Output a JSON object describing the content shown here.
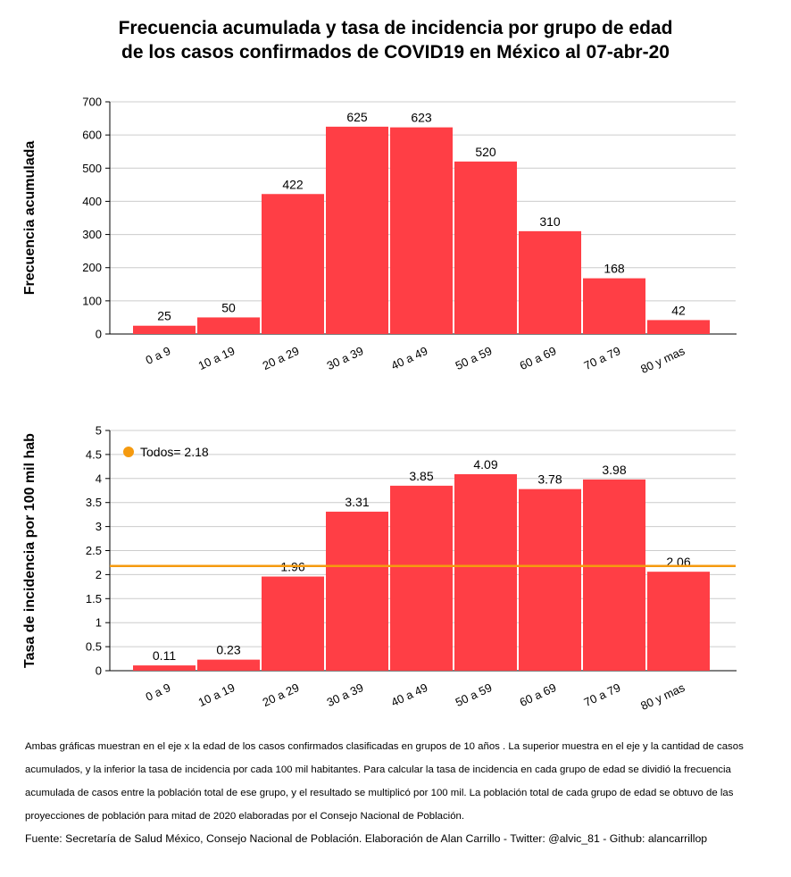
{
  "title_lines": [
    "Frecuencia acumulada y tasa de incidencia por grupo de edad",
    "de los casos confirmados de COVID19 en México al 07-abr-20"
  ],
  "colors": {
    "bar": "#ff3e45",
    "reference_line": "#f59a0f",
    "grid": "#cccccc"
  },
  "chart_data": [
    {
      "type": "bar",
      "title": "",
      "xlabel": "",
      "ylabel": "Frecuencia acumulada",
      "categories": [
        "0 a 9",
        "10 a 19",
        "20 a 29",
        "30 a 39",
        "40 a 49",
        "50 a 59",
        "60 a 69",
        "70 a 79",
        "80 y mas"
      ],
      "values": [
        25,
        50,
        422,
        625,
        623,
        520,
        310,
        168,
        42
      ],
      "value_labels": [
        "25",
        "50",
        "422",
        "625",
        "623",
        "520",
        "310",
        "168",
        "42"
      ],
      "ylim": [
        0,
        700
      ],
      "yticks": [
        0,
        100,
        200,
        300,
        400,
        500,
        600,
        700
      ],
      "ytick_labels": [
        "0",
        "100",
        "200",
        "300",
        "400",
        "500",
        "600",
        "700"
      ],
      "grid": true
    },
    {
      "type": "bar",
      "title": "",
      "xlabel": "",
      "ylabel": "Tasa de incidencia por 100 mil hab",
      "categories": [
        "0 a 9",
        "10 a 19",
        "20 a 29",
        "30 a 39",
        "40 a 49",
        "50 a 59",
        "60 a 69",
        "70 a 79",
        "80 y mas"
      ],
      "values": [
        0.11,
        0.23,
        1.96,
        3.31,
        3.85,
        4.09,
        3.78,
        3.98,
        2.06
      ],
      "value_labels": [
        "0.11",
        "0.23",
        "1.96",
        "3.31",
        "3.85",
        "4.09",
        "3.78",
        "3.98",
        "2.06"
      ],
      "ylim": [
        0,
        5
      ],
      "yticks": [
        0,
        0.5,
        1,
        1.5,
        2,
        2.5,
        3,
        3.5,
        4,
        4.5,
        5
      ],
      "ytick_labels": [
        "0",
        "0.5",
        "1",
        "1.5",
        "2",
        "2.5",
        "3",
        "3.5",
        "4",
        "4.5",
        "5"
      ],
      "grid": true,
      "reference_line": {
        "value": 2.18,
        "label": "Todos= 2.18"
      },
      "legend_position": "top-left"
    }
  ],
  "note": "Ambas gráficas muestran en el eje x la edad de los casos confirmados clasificadas en grupos de 10 años . La superior muestra en el eje y la cantidad de casos acumulados, y la inferior la tasa de incidencia por cada 100 mil habitantes. Para calcular la tasa de incidencia en cada grupo de edad se dividió la frecuencia acumulada de casos entre la población total de ese grupo, y el resultado se multiplicó por 100 mil. La población total de cada grupo de edad se obtuvo de las proyecciones de población para mitad de 2020 elaboradas por el Consejo Nacional de Población.",
  "source": "Fuente: Secretaría de Salud México, Consejo Nacional de Población. Elaboración de Alan Carrillo - Twitter: @alvic_81 - Github: alancarrillop"
}
